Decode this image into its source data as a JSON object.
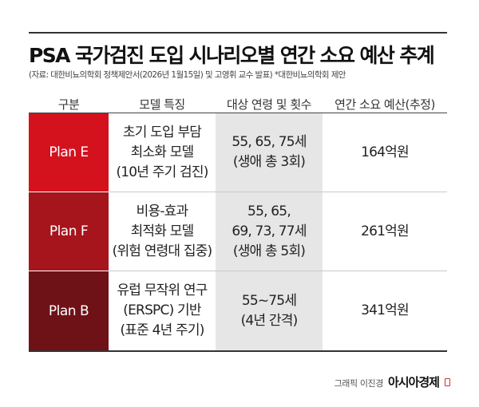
{
  "title": "PSA 국가검진 도입 시나리오별 연간 소요 예산 추계",
  "source": "(자료: 대한비뇨의학회 정책제안서(2026년 1월15일) 및 고영휘 교수 발표) *대한비뇨의학회 제안",
  "headers": [
    "구분",
    "모델 특징",
    "대상 연령 및 횟수",
    "연간 소요 예산(추정)"
  ],
  "rows": [
    {
      "plan": "Plan E",
      "color": "#d4121e",
      "feature": [
        "초기 도입 부담",
        "최소화 모델",
        "(10년 주기 검진)"
      ],
      "target": [
        "55, 65, 75세",
        "(생애 총 3회)"
      ],
      "budget": "164억원"
    },
    {
      "plan": "Plan F",
      "color": "#a6141c",
      "feature": [
        "비용-효과",
        "최적화 모델",
        "(위험 연령대 집중)"
      ],
      "target": [
        "55, 65,",
        "69, 73, 77세",
        "(생애 총 5회)"
      ],
      "budget": "261억원"
    },
    {
      "plan": "Plan B",
      "color": "#6e1218",
      "feature": [
        "유럽 무작위 연구",
        "(ERSPC) 기반",
        "(표준 4년 주기)"
      ],
      "target": [
        "55~75세",
        "(4년 간격)"
      ],
      "budget": "341억원"
    }
  ],
  "credit": {
    "graphic": "그래픽 이진경",
    "brand": "아시아경제"
  }
}
